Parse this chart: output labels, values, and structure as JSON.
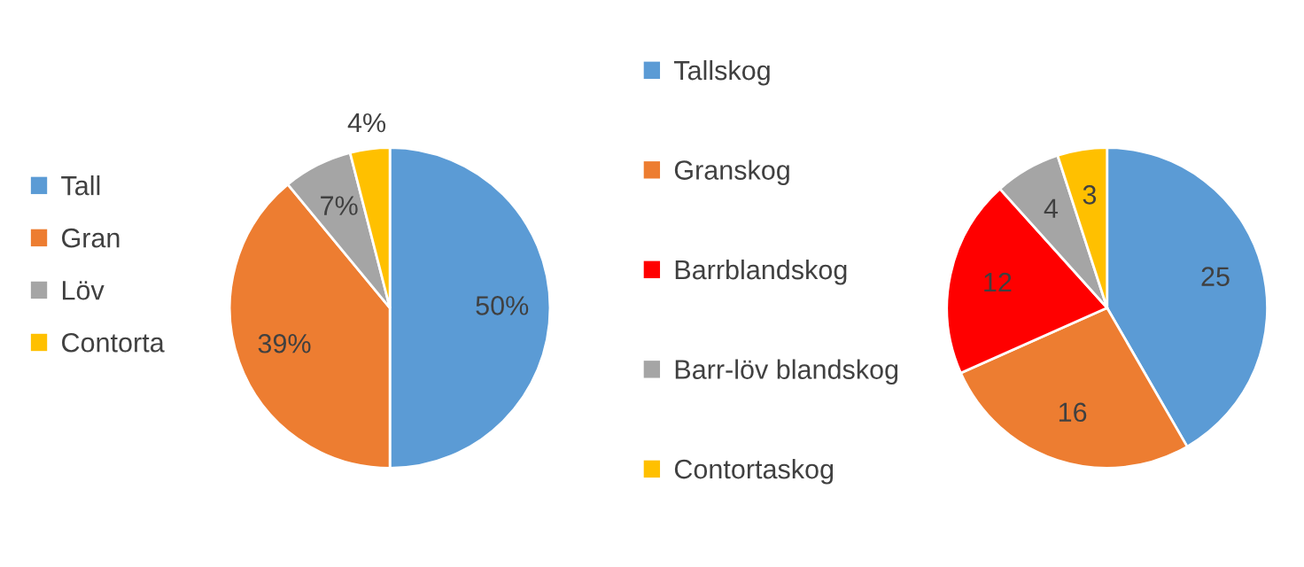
{
  "chart_data": [
    {
      "type": "pie",
      "categories": [
        "Tall",
        "Gran",
        "Löv",
        "Contorta"
      ],
      "values": [
        50,
        39,
        7,
        4
      ],
      "colors": [
        "#5b9bd5",
        "#ed7d31",
        "#a5a5a5",
        "#ffc000"
      ],
      "value_labels": [
        "50%",
        "39%",
        "7%",
        "4%"
      ],
      "legend": "left"
    },
    {
      "type": "pie",
      "categories": [
        "Tallskog",
        "Granskog",
        "Barrblandskog",
        "Barr-löv blandskog",
        "Contortaskog"
      ],
      "values": [
        25,
        16,
        12,
        4,
        3
      ],
      "colors": [
        "#5b9bd5",
        "#ed7d31",
        "#ff0000",
        "#a5a5a5",
        "#ffc000"
      ],
      "data_labels": true,
      "legend": "left"
    }
  ]
}
